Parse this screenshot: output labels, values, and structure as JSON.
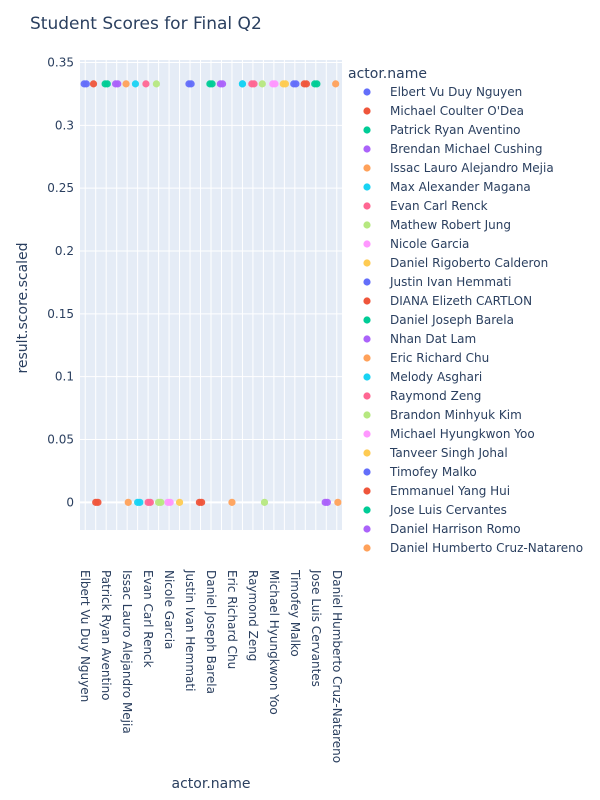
{
  "chart_data": {
    "type": "scatter",
    "title": "Student Scores for Final Q2",
    "xlabel": "actor.name",
    "ylabel": "result.score.scaled",
    "ylim": [
      -0.022,
      0.352
    ],
    "yticks": [
      0,
      0.05,
      0.1,
      0.15,
      0.2,
      0.25,
      0.3,
      0.35
    ],
    "ytick_labels": [
      "0",
      "0.05",
      "0.1",
      "0.15",
      "0.2",
      "0.25",
      "0.3",
      "0.35"
    ],
    "grid": true,
    "legend_title": "actor.name",
    "legend_position": "right",
    "categories": [
      "Elbert Vu Duy Nguyen",
      "Michael Coulter O'Dea",
      "Patrick Ryan Aventino",
      "Brendan Michael Cushing",
      "Issac Lauro Alejandro Mejia",
      "Max Alexander Magana",
      "Evan Carl Renck",
      "Mathew Robert Jung",
      "Nicole Garcia",
      "Daniel Rigoberto Calderon",
      "Justin Ivan Hemmati",
      "DIANA Elizeth CARTLON",
      "Daniel Joseph Barela",
      "Nhan Dat Lam",
      "Eric Richard Chu",
      "Melody Asghari",
      "Raymond Zeng",
      "Brandon Minhyuk Kim",
      "Michael Hyungkwon Yoo",
      "Tanveer Singh Johal",
      "Timofey Malko",
      "Emmanuel Yang Hui",
      "Jose Luis Cervantes",
      "Daniel Harrison Romo",
      "Daniel Humberto Cruz-Natareno"
    ],
    "x_tick_labels": [
      "Elbert Vu Duy Nguyen",
      "Patrick Ryan Aventino",
      "Issac Lauro Alejandro Mejia",
      "Evan Carl Renck",
      "Nicole Garcia",
      "Justin Ivan Hemmati",
      "Daniel Joseph Barela",
      "Eric Richard Chu",
      "Raymond Zeng",
      "Michael Hyungkwon Yoo",
      "Timofey Malko",
      "Jose Luis Cervantes",
      "Daniel Humberto Cruz-Natareno"
    ],
    "series": [
      {
        "name": "Elbert Vu Duy Nguyen",
        "color": "#636efa",
        "values": [
          0.333,
          0.333
        ]
      },
      {
        "name": "Michael Coulter O'Dea",
        "color": "#EF553B",
        "values": [
          0.333,
          0,
          0
        ]
      },
      {
        "name": "Patrick Ryan Aventino",
        "color": "#00cc96",
        "values": [
          0.333,
          0.333
        ]
      },
      {
        "name": "Brendan Michael Cushing",
        "color": "#ab63fa",
        "values": [
          0.333,
          0.333
        ]
      },
      {
        "name": "Issac Lauro Alejandro Mejia",
        "color": "#FFA15A",
        "values": [
          0.333,
          0
        ]
      },
      {
        "name": "Max Alexander Magana",
        "color": "#19d3f3",
        "values": [
          0.333,
          0,
          0
        ]
      },
      {
        "name": "Evan Carl Renck",
        "color": "#FF6692",
        "values": [
          0.333,
          0,
          0
        ]
      },
      {
        "name": "Mathew Robert Jung",
        "color": "#B6E880",
        "values": [
          0.333,
          0,
          0
        ]
      },
      {
        "name": "Nicole Garcia",
        "color": "#FF97FF",
        "values": [
          0,
          0
        ]
      },
      {
        "name": "Daniel Rigoberto Calderon",
        "color": "#FECB52",
        "values": [
          0
        ]
      },
      {
        "name": "Justin Ivan Hemmati",
        "color": "#636efa",
        "values": [
          0.333,
          0.333
        ]
      },
      {
        "name": "DIANA Elizeth CARTLON",
        "color": "#EF553B",
        "values": [
          0,
          0
        ]
      },
      {
        "name": "Daniel Joseph Barela",
        "color": "#00cc96",
        "values": [
          0.333,
          0.333
        ]
      },
      {
        "name": "Nhan Dat Lam",
        "color": "#ab63fa",
        "values": [
          0.333,
          0.333
        ]
      },
      {
        "name": "Eric Richard Chu",
        "color": "#FFA15A",
        "values": [
          0
        ]
      },
      {
        "name": "Melody Asghari",
        "color": "#19d3f3",
        "values": [
          0.333
        ]
      },
      {
        "name": "Raymond Zeng",
        "color": "#FF6692",
        "values": [
          0.333,
          0.333
        ]
      },
      {
        "name": "Brandon Minhyuk Kim",
        "color": "#B6E880",
        "values": [
          0.333,
          0
        ]
      },
      {
        "name": "Michael Hyungkwon Yoo",
        "color": "#FF97FF",
        "values": [
          0.333,
          0.333
        ]
      },
      {
        "name": "Tanveer Singh Johal",
        "color": "#FECB52",
        "values": [
          0.333,
          0.333
        ]
      },
      {
        "name": "Timofey Malko",
        "color": "#636efa",
        "values": [
          0.333,
          0.333
        ]
      },
      {
        "name": "Emmanuel Yang Hui",
        "color": "#EF553B",
        "values": [
          0.333,
          0.333
        ]
      },
      {
        "name": "Jose Luis Cervantes",
        "color": "#00cc96",
        "values": [
          0.333,
          0.333
        ]
      },
      {
        "name": "Daniel Harrison Romo",
        "color": "#ab63fa",
        "values": [
          0,
          0
        ]
      },
      {
        "name": "Daniel Humberto Cruz-Natareno",
        "color": "#FFA15A",
        "values": [
          0.333,
          0
        ]
      },
      {
        "name": "Melody Asghari",
        "color": "#19d3f3",
        "values": [
          0.333
        ]
      }
    ]
  }
}
